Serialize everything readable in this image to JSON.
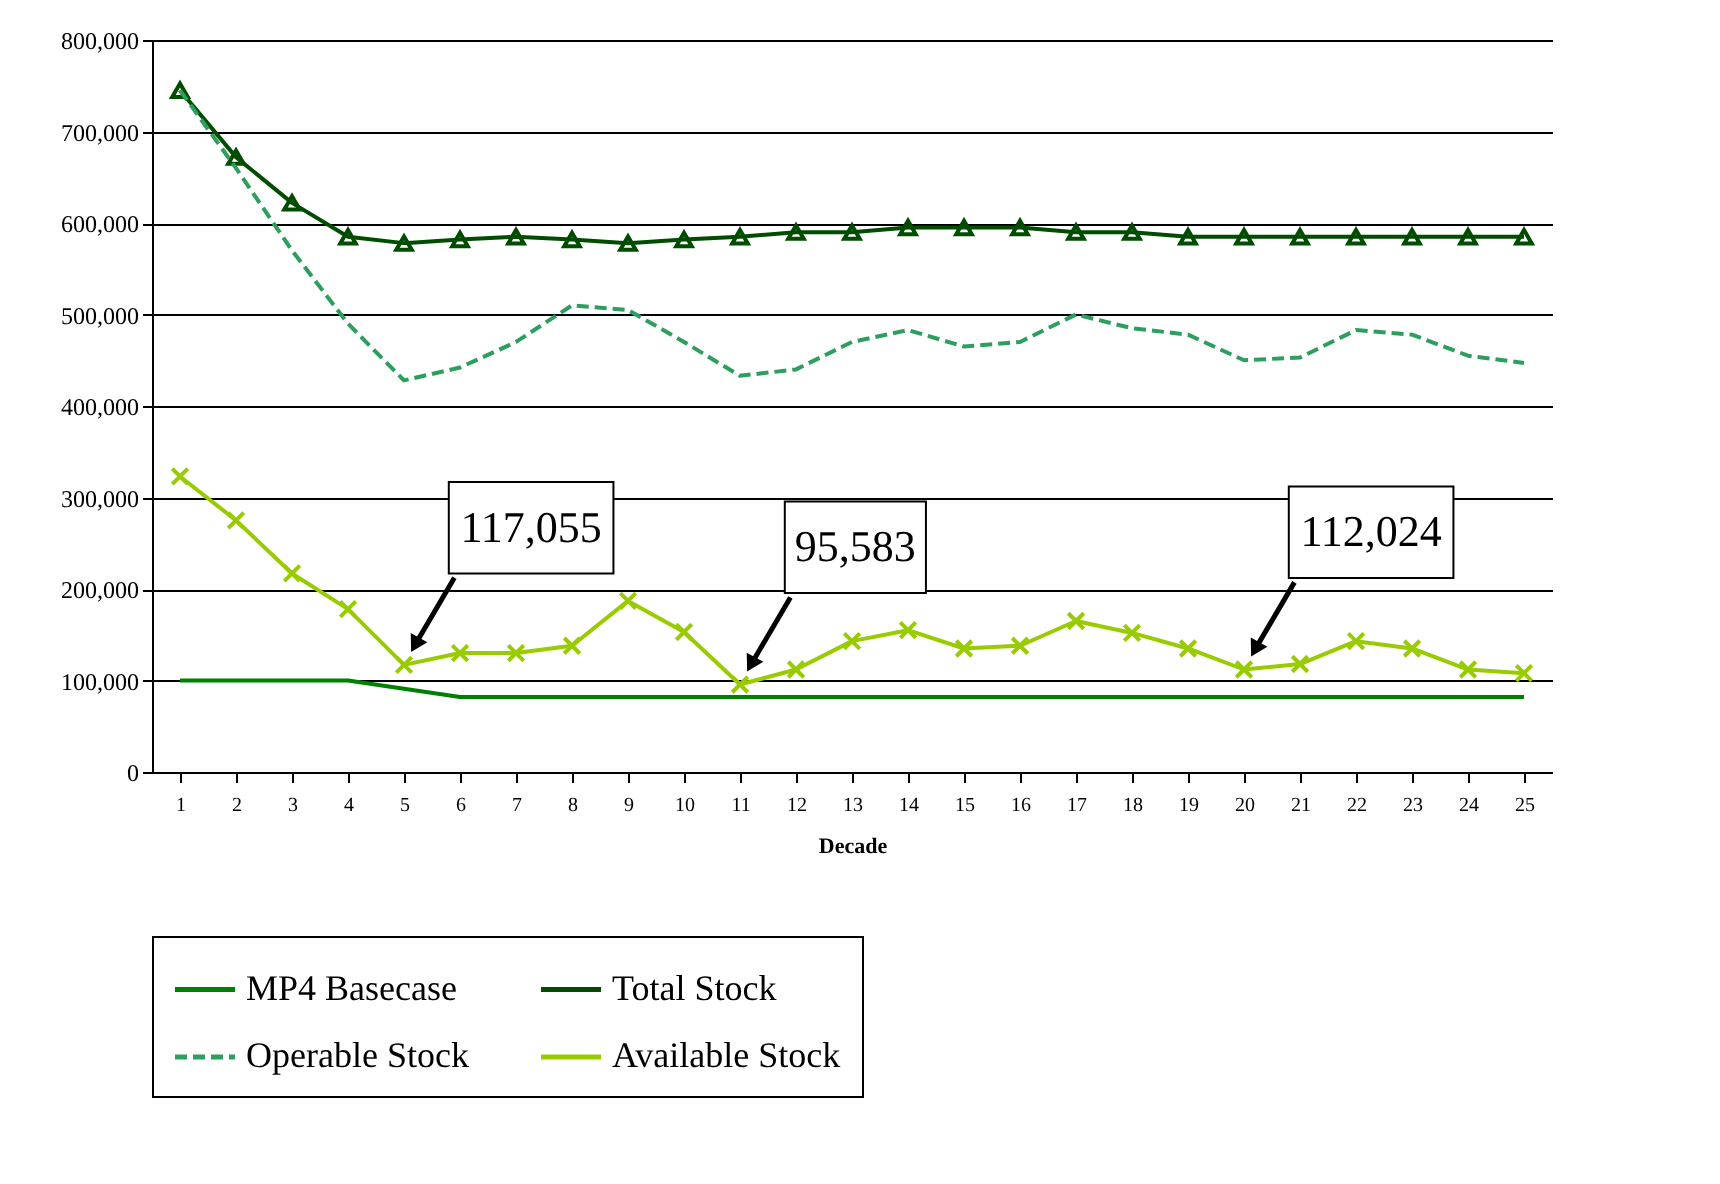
{
  "chart_data": {
    "type": "line",
    "xlabel": "Decade",
    "x": [
      1,
      2,
      3,
      4,
      5,
      6,
      7,
      8,
      9,
      10,
      11,
      12,
      13,
      14,
      15,
      16,
      17,
      18,
      19,
      20,
      21,
      22,
      23,
      24,
      25
    ],
    "xlim": [
      0.5,
      25.5
    ],
    "xticks": [
      1,
      2,
      3,
      4,
      5,
      6,
      7,
      8,
      9,
      10,
      11,
      12,
      13,
      14,
      15,
      16,
      17,
      18,
      19,
      20,
      21,
      22,
      23,
      24,
      25
    ],
    "ylim": [
      0,
      800000
    ],
    "yticks": [
      0,
      {
        "value": 100000,
        "label": "100,000"
      },
      {
        "value": 200000,
        "label": "200,000"
      },
      {
        "value": 300000,
        "label": "300,000"
      },
      {
        "value": 400000,
        "label": "400,000"
      },
      {
        "value": 500000,
        "label": "500,000"
      },
      {
        "value": 600000,
        "label": "600,000"
      },
      {
        "value": 700000,
        "label": "700,000"
      },
      {
        "value": 800000,
        "label": "800,000"
      }
    ],
    "grid": "y",
    "legend": "bottom",
    "series": [
      {
        "name": "MP4 Basecase",
        "color": "#008000",
        "line_style": "solid",
        "marker": "none",
        "values": [
          100000,
          100000,
          100000,
          100000,
          91000,
          82000,
          82000,
          82000,
          82000,
          82000,
          82000,
          82000,
          82000,
          82000,
          82000,
          82000,
          82000,
          82000,
          82000,
          82000,
          82000,
          82000,
          82000,
          82000,
          82000
        ]
      },
      {
        "name": "Total Stock",
        "color": "#004d00",
        "line_style": "solid",
        "marker": "triangle",
        "values": [
          745000,
          672000,
          622000,
          585000,
          578000,
          582000,
          585000,
          582000,
          578000,
          582000,
          585000,
          590000,
          590000,
          595000,
          595000,
          595000,
          590000,
          590000,
          585000,
          585000,
          585000,
          585000,
          585000,
          585000,
          585000
        ]
      },
      {
        "name": "Operable Stock",
        "color": "#2e9e5e",
        "line_style": "dashed",
        "marker": "none",
        "values": [
          745000,
          660000,
          570000,
          490000,
          428000,
          442000,
          470000,
          510000,
          505000,
          470000,
          433000,
          440000,
          470000,
          483000,
          465000,
          470000,
          500000,
          485000,
          478000,
          450000,
          453000,
          483000,
          478000,
          455000,
          447000
        ]
      },
      {
        "name": "Available Stock",
        "color": "#99cc00",
        "line_style": "solid",
        "marker": "cross",
        "values": [
          323000,
          275000,
          217000,
          178000,
          117055,
          130000,
          130000,
          138000,
          187000,
          153000,
          95583,
          112000,
          143000,
          155000,
          135000,
          138000,
          165000,
          152000,
          135000,
          112024,
          118000,
          143000,
          135000,
          112000,
          108000
        ]
      }
    ],
    "annotations": [
      {
        "text": "117,055",
        "x": 5,
        "y": 117055
      },
      {
        "text": "95,583",
        "x": 11,
        "y": 95583
      },
      {
        "text": "112,024",
        "x": 20,
        "y": 112024
      }
    ]
  }
}
